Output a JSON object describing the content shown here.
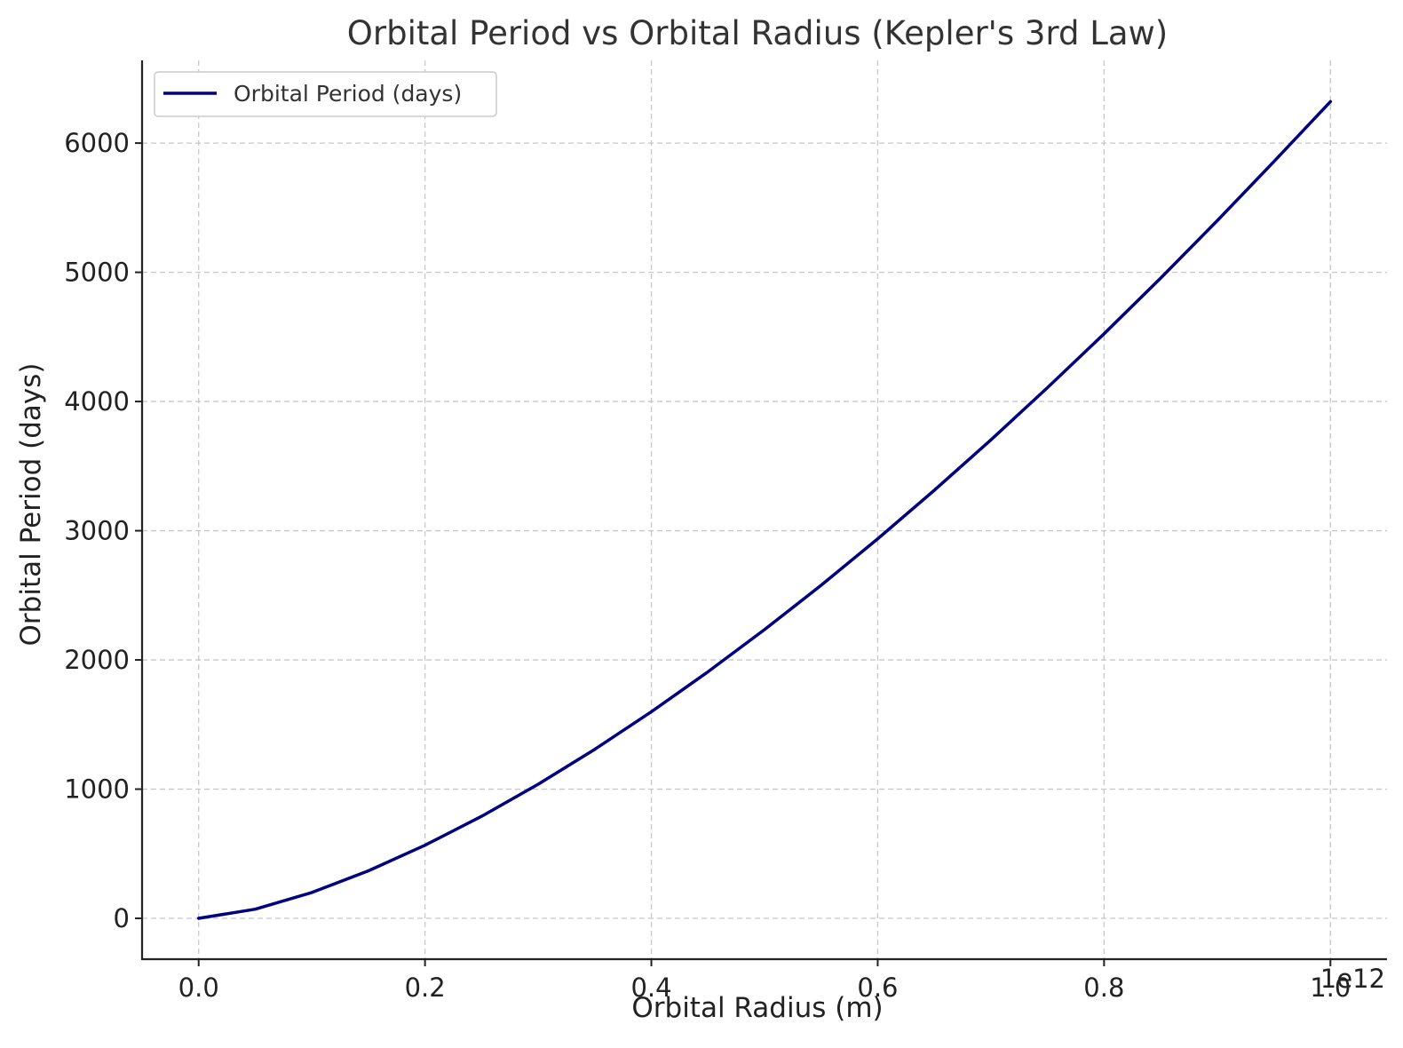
{
  "chart_data": {
    "type": "line",
    "title": "Orbital Period vs Orbital Radius (Kepler's 3rd Law)",
    "xlabel": "Orbital Radius (m)",
    "ylabel": "Orbital Period (days)",
    "x_offset_label": "1e12",
    "xlim": [
      -0.05,
      1.05
    ],
    "ylim": [
      -316,
      6640
    ],
    "x_ticks": [
      0.0,
      0.2,
      0.4,
      0.6,
      0.8,
      1.0
    ],
    "x_tick_labels": [
      "0.0",
      "0.2",
      "0.4",
      "0.6",
      "0.8",
      "1.0"
    ],
    "y_ticks": [
      0,
      1000,
      2000,
      3000,
      4000,
      5000,
      6000
    ],
    "y_tick_labels": [
      "0",
      "1000",
      "2000",
      "3000",
      "4000",
      "5000",
      "6000"
    ],
    "grid": true,
    "legend": "upper-left",
    "series": [
      {
        "name": "Orbital Period (days)",
        "color": "#000080",
        "x": [
          0.0,
          0.05,
          0.1,
          0.15,
          0.2,
          0.25,
          0.3,
          0.35,
          0.4,
          0.45,
          0.5,
          0.55,
          0.6,
          0.65,
          0.7,
          0.75,
          0.8,
          0.85,
          0.9,
          0.95,
          1.0
        ],
        "y": [
          0,
          71,
          200,
          368,
          566,
          790,
          1038,
          1308,
          1599,
          1908,
          2235,
          2578,
          2938,
          3313,
          3703,
          4107,
          4524,
          4955,
          5399,
          5856,
          6321
        ]
      }
    ]
  }
}
